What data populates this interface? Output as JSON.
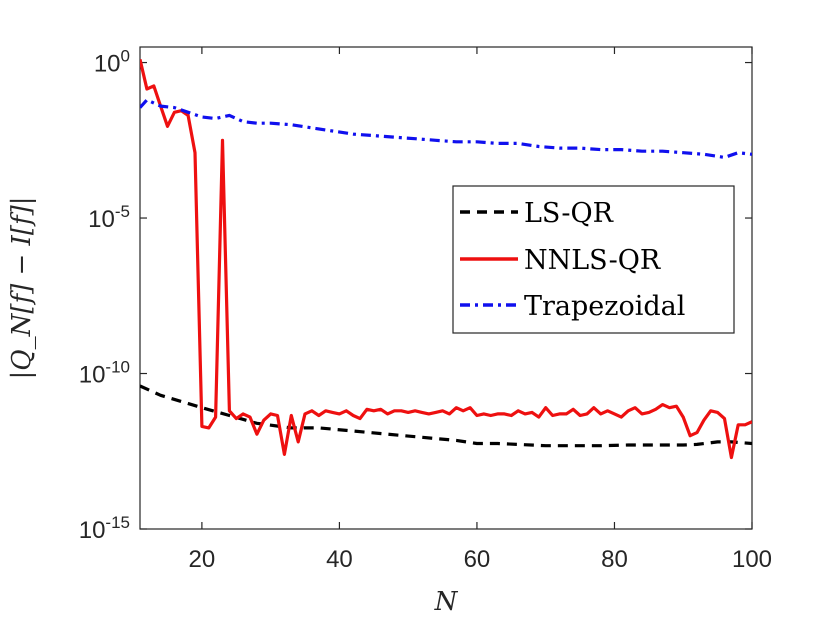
{
  "chart_data": {
    "type": "line",
    "xlabel": "N",
    "ylabel": "|Q_N[f] − I[f]|",
    "yscale": "log",
    "xlim": [
      11,
      100
    ],
    "ylim_exponent": [
      -15,
      0.5
    ],
    "xticks": [
      {
        "value": 20,
        "label": "20"
      },
      {
        "value": 40,
        "label": "40"
      },
      {
        "value": 60,
        "label": "60"
      },
      {
        "value": 80,
        "label": "80"
      },
      {
        "value": 100,
        "label": "100"
      }
    ],
    "yticks": [
      {
        "exp": 0,
        "base": "10",
        "sup": "0"
      },
      {
        "exp": -5,
        "base": "10",
        "sup": "-5"
      },
      {
        "exp": -10,
        "base": "10",
        "sup": "-10"
      },
      {
        "exp": -15,
        "base": "10",
        "sup": "-15"
      }
    ],
    "legend_position": "center-right",
    "series": [
      {
        "name": "LS-QR",
        "color": "#000000",
        "style": "dashed",
        "x": [
          11,
          12,
          14,
          17,
          20,
          24,
          28,
          33,
          37,
          42,
          47,
          52,
          57,
          60,
          63,
          66,
          70,
          73,
          75,
          78,
          82,
          86,
          90,
          92,
          95,
          97,
          100
        ],
        "log10y": [
          -10.4,
          -10.5,
          -10.7,
          -10.9,
          -11.1,
          -11.35,
          -11.6,
          -11.75,
          -11.75,
          -11.85,
          -11.95,
          -12.05,
          -12.15,
          -12.25,
          -12.25,
          -12.28,
          -12.32,
          -12.32,
          -12.32,
          -12.32,
          -12.3,
          -12.3,
          -12.3,
          -12.28,
          -12.2,
          -12.2,
          -12.25
        ]
      },
      {
        "name": "NNLS-QR",
        "color": "#ee1010",
        "style": "solid",
        "x": [
          11,
          12,
          13,
          14,
          15,
          16,
          17,
          18,
          19,
          20,
          21,
          22,
          23,
          24,
          25,
          26,
          27,
          28,
          29,
          30,
          31,
          32,
          33,
          34,
          35,
          36,
          37,
          38,
          39,
          40,
          41,
          42,
          43,
          44,
          45,
          46,
          47,
          48,
          49,
          50,
          51,
          52,
          53,
          54,
          55,
          56,
          57,
          58,
          59,
          60,
          61,
          62,
          63,
          64,
          65,
          66,
          67,
          68,
          69,
          70,
          71,
          72,
          73,
          74,
          75,
          76,
          77,
          78,
          79,
          80,
          81,
          82,
          83,
          84,
          85,
          86,
          87,
          88,
          89,
          90,
          91,
          92,
          93,
          94,
          95,
          96,
          97,
          98,
          99,
          100
        ],
        "log10y": [
          0.1,
          -0.85,
          -0.75,
          -1.4,
          -2.05,
          -1.6,
          -1.55,
          -1.7,
          -2.9,
          -11.7,
          -11.75,
          -11.4,
          -2.5,
          -11.2,
          -11.45,
          -11.3,
          -11.4,
          -11.95,
          -11.5,
          -11.3,
          -11.35,
          -12.6,
          -11.35,
          -12.2,
          -11.3,
          -11.2,
          -11.35,
          -11.2,
          -11.25,
          -11.3,
          -11.2,
          -11.35,
          -11.45,
          -11.15,
          -11.2,
          -11.15,
          -11.3,
          -11.2,
          -11.2,
          -11.25,
          -11.2,
          -11.25,
          -11.3,
          -11.25,
          -11.2,
          -11.3,
          -11.1,
          -11.2,
          -11.1,
          -11.35,
          -11.3,
          -11.35,
          -11.3,
          -11.3,
          -11.35,
          -11.2,
          -11.3,
          -11.25,
          -11.4,
          -11.1,
          -11.35,
          -11.3,
          -11.3,
          -11.15,
          -11.35,
          -11.3,
          -11.1,
          -11.3,
          -11.2,
          -11.3,
          -11.4,
          -11.2,
          -11.1,
          -11.3,
          -11.25,
          -11.15,
          -11.0,
          -11.1,
          -11.05,
          -11.4,
          -12.0,
          -11.9,
          -11.5,
          -11.2,
          -11.25,
          -11.45,
          -12.7,
          -11.65,
          -11.65,
          -11.55
        ]
      },
      {
        "name": "Trapezoidal",
        "color": "#1010ee",
        "style": "dashdot",
        "x": [
          11,
          12,
          14,
          16,
          18,
          20,
          22,
          24,
          26,
          28,
          30,
          33,
          36,
          39,
          42,
          45,
          48,
          51,
          54,
          57,
          60,
          63,
          66,
          69,
          72,
          75,
          78,
          81,
          84,
          87,
          90,
          93,
          96,
          98,
          100
        ],
        "log10y": [
          -1.45,
          -1.2,
          -1.4,
          -1.45,
          -1.6,
          -1.75,
          -1.8,
          -1.7,
          -1.9,
          -1.95,
          -1.95,
          -2.0,
          -2.1,
          -2.2,
          -2.3,
          -2.35,
          -2.4,
          -2.45,
          -2.5,
          -2.55,
          -2.55,
          -2.6,
          -2.6,
          -2.7,
          -2.75,
          -2.75,
          -2.8,
          -2.8,
          -2.85,
          -2.85,
          -2.9,
          -2.95,
          -3.05,
          -2.9,
          -2.95
        ]
      }
    ]
  }
}
